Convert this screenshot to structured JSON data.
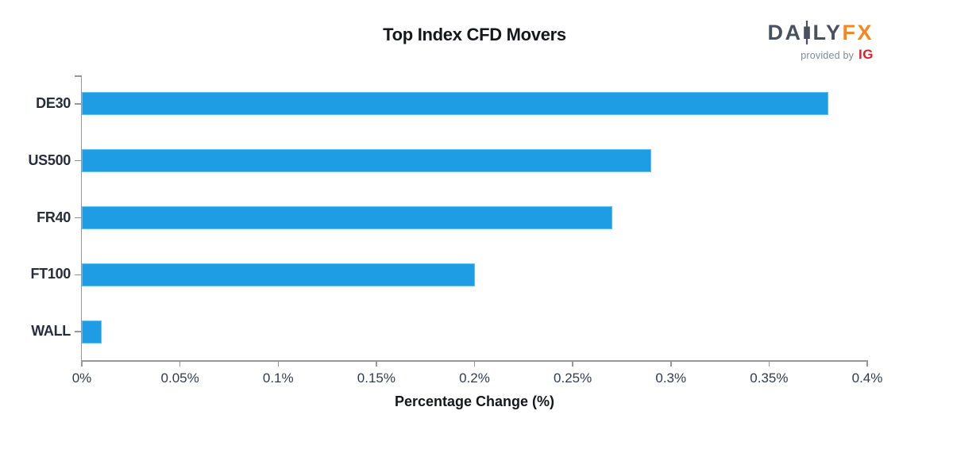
{
  "chart_data": {
    "type": "bar",
    "orientation": "horizontal",
    "title": "Top Index CFD Movers",
    "xlabel": "Percentage Change (%)",
    "ylabel": "",
    "categories": [
      "DE30",
      "US500",
      "FR40",
      "FT100",
      "WALL"
    ],
    "values": [
      0.38,
      0.29,
      0.27,
      0.2,
      0.01
    ],
    "xlim": [
      0,
      0.4
    ],
    "xticks": [
      0,
      0.05,
      0.1,
      0.15,
      0.2,
      0.25,
      0.3,
      0.35,
      0.4
    ],
    "xtick_labels": [
      "0%",
      "0.05%",
      "0.1%",
      "0.15%",
      "0.2%",
      "0.25%",
      "0.3%",
      "0.35%",
      "0.4%"
    ],
    "grid": false,
    "legend": "none",
    "bar_color": "#1e9ce4",
    "bar_edge_color": "#5ec1f2",
    "axis_color": "#989898",
    "tick_label_color": "#303c4f",
    "category_label_color": "#262e3b"
  },
  "logo": {
    "part1": "DA",
    "part2": "LY",
    "part3": "FX",
    "provided_by": "provided by",
    "ig": "IG",
    "slate_color": "#49505f",
    "orange_color": "#f6861f",
    "ig_red_color": "#dd1f2d",
    "provided_gray_color": "#7e8b99"
  }
}
